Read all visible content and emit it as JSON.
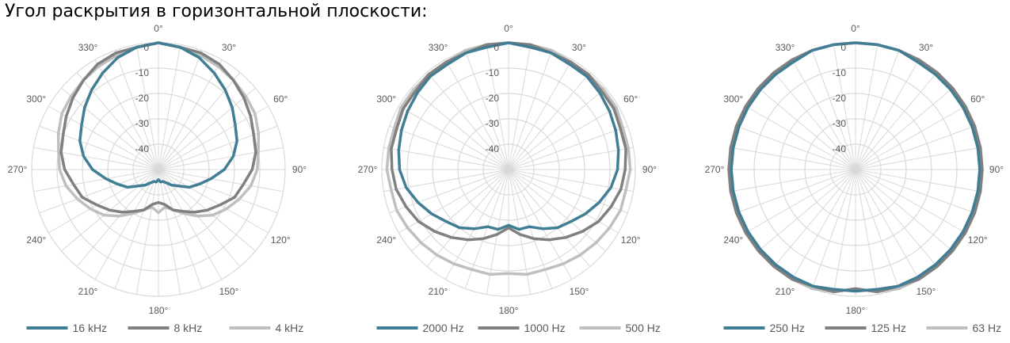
{
  "title": "Угол раскрытия в горизонтальной плоскости:",
  "colors": {
    "dark_blue": "#417e96",
    "dark_gray": "#808080",
    "light_gray": "#bfbfbf",
    "grid": "#d9d9d9"
  },
  "chart_data": [
    {
      "type": "radar",
      "angles": [
        0,
        10,
        20,
        30,
        40,
        50,
        60,
        70,
        80,
        90,
        100,
        110,
        120,
        130,
        140,
        150,
        160,
        170,
        180,
        190,
        200,
        210,
        220,
        230,
        240,
        250,
        260,
        270,
        280,
        290,
        300,
        310,
        320,
        330,
        340,
        350
      ],
      "angle_labels": [
        "0°",
        "30°",
        "60°",
        "90°",
        "120°",
        "150°",
        "180°",
        "210°",
        "240°",
        "270°",
        "300°",
        "330°"
      ],
      "r_labels": [
        "0",
        "-10",
        "-20",
        "-30",
        "-40"
      ],
      "rlim": [
        -50,
        0
      ],
      "series": [
        {
          "name": "16 kHz",
          "values": [
            0,
            -1,
            -3,
            -6,
            -9,
            -12,
            -15,
            -17,
            -20,
            -24,
            -29,
            -33,
            -36,
            -40,
            -42,
            -44,
            -45,
            -45,
            -46,
            -45,
            -45,
            -44,
            -42,
            -40,
            -36,
            -33,
            -29,
            -24,
            -20,
            -17,
            -15,
            -12,
            -9,
            -6,
            -3,
            -1
          ]
        },
        {
          "name": "8 kHz",
          "values": [
            0,
            -1,
            -1,
            -2,
            -4,
            -6,
            -8,
            -10,
            -11,
            -13,
            -16,
            -18,
            -22,
            -25,
            -28,
            -31,
            -33,
            -36,
            -37,
            -36,
            -33,
            -31,
            -28,
            -25,
            -22,
            -18,
            -16,
            -13,
            -11,
            -10,
            -8,
            -6,
            -4,
            -2,
            -1,
            -1
          ]
        },
        {
          "name": "4 kHz",
          "values": [
            0,
            -1,
            -2,
            -3,
            -4,
            -5,
            -6,
            -8,
            -10,
            -11,
            -13,
            -16,
            -19,
            -22,
            -26,
            -30,
            -33,
            -35,
            -33,
            -35,
            -33,
            -30,
            -26,
            -22,
            -19,
            -16,
            -13,
            -11,
            -10,
            -8,
            -6,
            -5,
            -4,
            -3,
            -2,
            -1
          ]
        }
      ],
      "legend": [
        {
          "name": "16 kHz",
          "color": "#417e96"
        },
        {
          "name": "8 kHz",
          "color": "#808080"
        },
        {
          "name": "4 kHz",
          "color": "#bfbfbf"
        }
      ]
    },
    {
      "type": "radar",
      "angles": [
        0,
        10,
        20,
        30,
        40,
        50,
        60,
        70,
        80,
        90,
        100,
        110,
        120,
        130,
        140,
        150,
        160,
        170,
        180,
        190,
        200,
        210,
        220,
        230,
        240,
        250,
        260,
        270,
        280,
        290,
        300,
        310,
        320,
        330,
        340,
        350
      ],
      "angle_labels": [
        "0°",
        "30°",
        "60°",
        "90°",
        "120°",
        "150°",
        "180°",
        "210°",
        "240°",
        "270°",
        "300°",
        "330°"
      ],
      "r_labels": [
        "0",
        "-10",
        "-20",
        "-30",
        "-40"
      ],
      "rlim": [
        -50,
        0
      ],
      "series": [
        {
          "name": "2000 Hz",
          "values": [
            0,
            -1,
            -1,
            -2,
            -2,
            -3,
            -4,
            -5,
            -6,
            -7,
            -9,
            -12,
            -15,
            -18,
            -20,
            -23,
            -26,
            -26,
            -28,
            -26,
            -26,
            -23,
            -20,
            -18,
            -15,
            -12,
            -9,
            -7,
            -6,
            -5,
            -4,
            -3,
            -2,
            -2,
            -1,
            -1
          ]
        },
        {
          "name": "1000 Hz",
          "values": [
            0,
            0,
            -1,
            -1,
            -1,
            -2,
            -2,
            -3,
            -3,
            -4,
            -5,
            -7,
            -9,
            -12,
            -15,
            -18,
            -21,
            -24,
            -27,
            -24,
            -21,
            -18,
            -15,
            -12,
            -9,
            -7,
            -5,
            -4,
            -3,
            -3,
            -2,
            -2,
            -1,
            -1,
            -1,
            0
          ]
        },
        {
          "name": "500 Hz",
          "values": [
            0,
            0,
            0,
            -1,
            -1,
            -1,
            -1,
            -2,
            -2,
            -2,
            -3,
            -3,
            -4,
            -5,
            -6,
            -7,
            -8,
            -8,
            -9,
            -8,
            -8,
            -7,
            -6,
            -5,
            -4,
            -3,
            -3,
            -2,
            -2,
            -2,
            -1,
            -1,
            -1,
            -1,
            0,
            0
          ]
        }
      ],
      "legend": [
        {
          "name": "2000 Hz",
          "color": "#417e96"
        },
        {
          "name": "1000 Hz",
          "color": "#808080"
        },
        {
          "name": "500 Hz",
          "color": "#bfbfbf"
        }
      ]
    },
    {
      "type": "radar",
      "angles": [
        0,
        10,
        20,
        30,
        40,
        50,
        60,
        70,
        80,
        90,
        100,
        110,
        120,
        130,
        140,
        150,
        160,
        170,
        180,
        190,
        200,
        210,
        220,
        230,
        240,
        250,
        260,
        270,
        280,
        290,
        300,
        310,
        320,
        330,
        340,
        350
      ],
      "angle_labels": [
        "0°",
        "30°",
        "60°",
        "90°",
        "120°",
        "150°",
        "180°",
        "210°",
        "240°",
        "270°",
        "300°",
        "330°"
      ],
      "r_labels": [
        "0",
        "-10",
        "-20",
        "-30",
        "-40"
      ],
      "rlim": [
        -50,
        0
      ],
      "series": [
        {
          "name": "250 Hz",
          "values": [
            0,
            0,
            0,
            -1,
            -1,
            -1,
            -1,
            -1,
            -1,
            -1,
            -1,
            -1,
            -1,
            -1,
            -1,
            -1,
            -1,
            -2,
            -2,
            -2,
            -1,
            -1,
            -1,
            -1,
            -1,
            -1,
            -1,
            -1,
            -1,
            -1,
            -1,
            -1,
            -1,
            -1,
            0,
            0
          ]
        },
        {
          "name": "125 Hz",
          "values": [
            0,
            0,
            0,
            0,
            0,
            0,
            0,
            0,
            0,
            0,
            0,
            0,
            0,
            0,
            0,
            0,
            -1,
            -1,
            -3,
            -1,
            -1,
            0,
            0,
            0,
            0,
            0,
            0,
            0,
            0,
            0,
            0,
            0,
            0,
            0,
            0,
            0
          ]
        },
        {
          "name": "63 Hz",
          "values": [
            0,
            0,
            0,
            0,
            0,
            0,
            0,
            0,
            0,
            0,
            0,
            0,
            0,
            0,
            0,
            0,
            0,
            -1,
            -3,
            -1,
            0,
            0,
            0,
            0,
            0,
            0,
            0,
            0,
            0,
            0,
            0,
            0,
            0,
            0,
            0,
            0
          ]
        }
      ],
      "legend": [
        {
          "name": "250 Hz",
          "color": "#417e96"
        },
        {
          "name": "125 Hz",
          "color": "#808080"
        },
        {
          "name": "63 Hz",
          "color": "#bfbfbf"
        }
      ]
    }
  ]
}
